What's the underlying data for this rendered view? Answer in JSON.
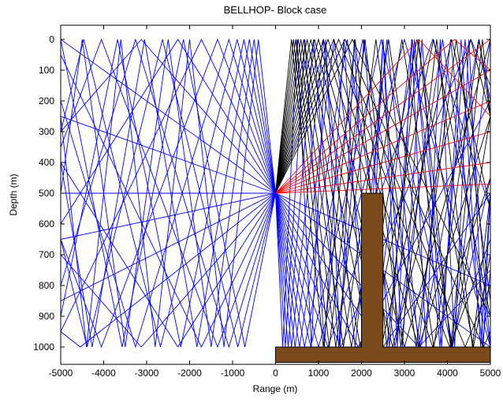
{
  "chart_data": {
    "type": "line",
    "title": "BELLHOP- Block case",
    "xlabel": "Range (m)",
    "ylabel": "Depth (m)",
    "xlim": [
      -5000,
      5000
    ],
    "ylim": [
      0,
      1050
    ],
    "y_reversed": true,
    "x_ticks": [
      -5000,
      -4000,
      -3000,
      -2000,
      -1000,
      0,
      1000,
      2000,
      3000,
      4000,
      5000
    ],
    "y_ticks": [
      0,
      100,
      200,
      300,
      400,
      500,
      600,
      700,
      800,
      900,
      1000
    ],
    "grid": false,
    "source": {
      "range": 0,
      "depth": 500
    },
    "surface_depth": 0,
    "bottom_depth": 1000,
    "obstacle": {
      "color": "#7b4a1c",
      "polygon": [
        [
          0,
          1000
        ],
        [
          0,
          1050
        ],
        [
          5000,
          1050
        ],
        [
          5000,
          1000
        ],
        [
          2500,
          1000
        ],
        [
          2500,
          500
        ],
        [
          2000,
          500
        ],
        [
          2000,
          1000
        ]
      ]
    },
    "ray_colors": {
      "bottom_bounce": "#0000ff",
      "surface_bounce": "#000000",
      "direct": "#ff0000"
    },
    "rays": {
      "left_fan_up_slopes": [
        0.05,
        0.1,
        0.16,
        0.22,
        0.29,
        0.37,
        0.46,
        0.56,
        0.68,
        0.82,
        1.0,
        1.25
      ],
      "left_fan_down_slopes": [
        0.0,
        0.03,
        0.07,
        0.11,
        0.16,
        0.22,
        0.29,
        0.37,
        0.46,
        0.57,
        0.7
      ],
      "right_bottom_slopes": [
        0.06,
        0.1,
        0.15,
        0.2,
        0.26,
        0.33,
        0.41,
        0.5,
        0.61,
        0.74,
        0.9,
        1.1,
        1.35,
        1.7,
        2.2,
        3.0
      ],
      "right_surface_slopes": [
        0.28,
        0.31,
        0.34,
        0.37,
        0.41,
        0.45,
        0.5,
        0.55,
        0.61,
        0.68,
        0.76,
        0.85,
        0.95,
        1.07,
        1.2,
        1.35
      ],
      "right_direct_slopes": [
        0.006,
        0.02,
        0.04,
        0.06,
        0.08,
        0.1,
        0.12,
        0.15
      ]
    }
  }
}
